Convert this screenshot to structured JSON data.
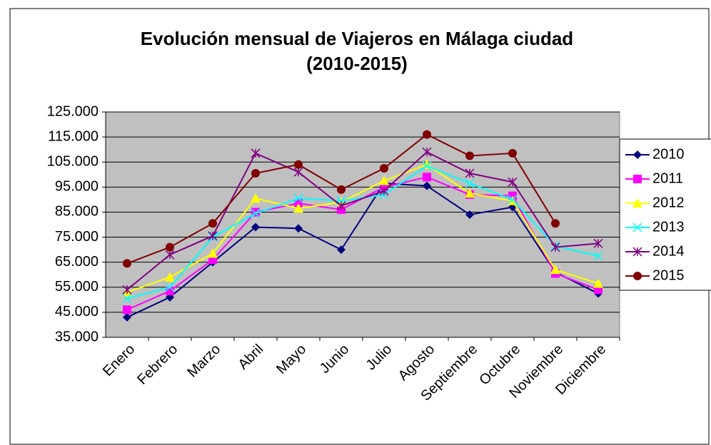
{
  "chart_data": {
    "type": "line",
    "title": [
      "Evolución mensual de Viajeros en Málaga ciudad",
      "(2010-2015)"
    ],
    "categories": [
      "Enero",
      "Febrero",
      "Marzo",
      "Abril",
      "Mayo",
      "Junio",
      "Julio",
      "Agosto",
      "Septiembre",
      "Octubre",
      "Noviembre",
      "Diciembre"
    ],
    "series": [
      {
        "name": "2010",
        "color": "#000080",
        "marker": "diamond",
        "values": [
          43000,
          51000,
          65000,
          79000,
          78500,
          70000,
          96500,
          95500,
          84000,
          87000,
          61000,
          52500
        ]
      },
      {
        "name": "2011",
        "color": "#ff00ff",
        "marker": "square",
        "values": [
          46000,
          53500,
          66000,
          85000,
          88500,
          86000,
          95000,
          99000,
          92000,
          91500,
          60500,
          54000
        ]
      },
      {
        "name": "2012",
        "color": "#ffff00",
        "marker": "triangle",
        "values": [
          53000,
          59000,
          68500,
          90500,
          86500,
          89000,
          97500,
          104000,
          92500,
          89500,
          62000,
          56500
        ]
      },
      {
        "name": "2013",
        "color": "#00ffff",
        "marker": "x",
        "values": [
          50500,
          55000,
          75000,
          84500,
          90500,
          89500,
          92000,
          103500,
          96500,
          90000,
          71500,
          67500
        ]
      },
      {
        "name": "2014",
        "color": "#800080",
        "marker": "asterisk",
        "values": [
          54000,
          68000,
          75500,
          108500,
          101000,
          87500,
          93500,
          109000,
          100500,
          97000,
          71000,
          72500
        ]
      },
      {
        "name": "2015",
        "color": "#800000",
        "marker": "circle",
        "values": [
          64500,
          71000,
          80500,
          100500,
          104000,
          94000,
          102500,
          116000,
          107500,
          108500,
          80500,
          null
        ]
      }
    ],
    "ylim": [
      35000,
      125000
    ],
    "yticks": [
      {
        "value": 35000,
        "label": "35.000"
      },
      {
        "value": 45000,
        "label": "45.000"
      },
      {
        "value": 55000,
        "label": "55.000"
      },
      {
        "value": 65000,
        "label": "65.000"
      },
      {
        "value": 75000,
        "label": "75.000"
      },
      {
        "value": 85000,
        "label": "85.000"
      },
      {
        "value": 95000,
        "label": "95.000"
      },
      {
        "value": 105000,
        "label": "105.000"
      },
      {
        "value": 115000,
        "label": "115.000"
      },
      {
        "value": 125000,
        "label": "125.000"
      }
    ],
    "grid": true,
    "plot_background": "#c0c0c0",
    "legend": "right"
  }
}
